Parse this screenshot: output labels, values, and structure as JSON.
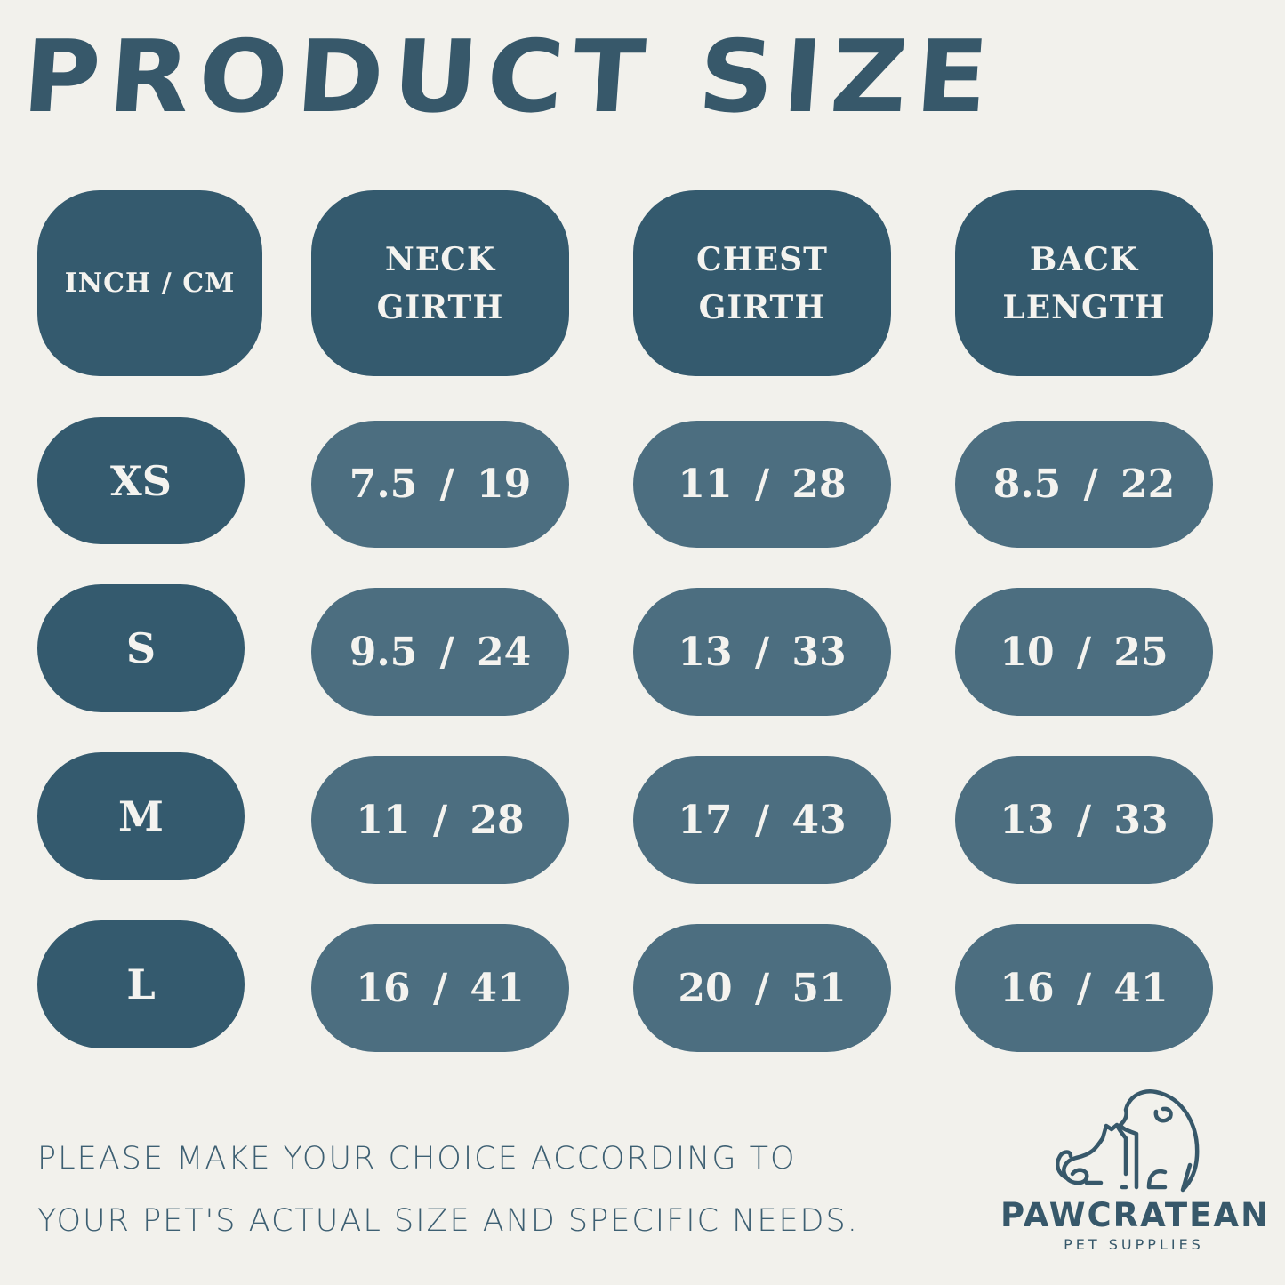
{
  "title": "PRODUCT SIZE",
  "colors": {
    "background": "#f2f1ec",
    "header_pill": "#345a6e",
    "value_pill": "#4c6e80",
    "text": "#37586a"
  },
  "table": {
    "headers": [
      "INCH / CM",
      "NECK\nGIRTH",
      "CHEST\nGIRTH",
      "BACK\nLENGTH"
    ],
    "rows": [
      {
        "size": "XS",
        "values": [
          "7.5 / 19",
          "11 / 28",
          "8.5 / 22"
        ]
      },
      {
        "size": "S",
        "values": [
          "9.5 / 24",
          "13 / 33",
          "10 / 25"
        ]
      },
      {
        "size": "M",
        "values": [
          "11 / 28",
          "17 / 43",
          "13 / 33"
        ]
      },
      {
        "size": "L",
        "values": [
          "16 / 41",
          "20 / 51",
          "16 / 41"
        ]
      }
    ]
  },
  "note": {
    "line1": "PLEASE MAKE YOUR CHOICE ACCORDING TO",
    "line2": "YOUR PET'S ACTUAL SIZE AND SPECIFIC NEEDS."
  },
  "logo": {
    "icon": "dog-and-cat-outline-icon",
    "brand": "PAWCRATEAN",
    "tagline": "PET SUPPLIES"
  }
}
